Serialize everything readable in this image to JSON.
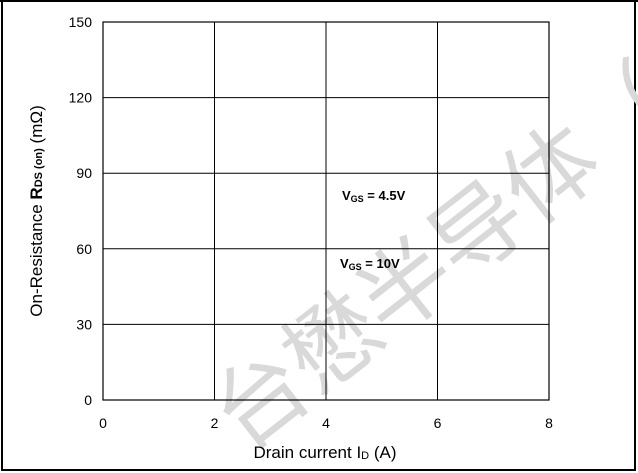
{
  "chart_data": {
    "type": "line",
    "title": "",
    "xlabel": "Drain current I",
    "xlabel_sub": "D",
    "xlabel_unit": " (A)",
    "ylabel_prefix": "On-Resistance ",
    "ylabel_bold": "R",
    "ylabel_sub": "DS (on)",
    "ylabel_unit": " (mΩ)",
    "xlim": [
      0,
      8
    ],
    "ylim": [
      0,
      150
    ],
    "x_ticks": [
      "0",
      "2",
      "4",
      "6",
      "8"
    ],
    "y_ticks": [
      "0",
      "30",
      "60",
      "90",
      "120",
      "150"
    ],
    "grid": true,
    "annotations": [
      {
        "main": "V",
        "sub": "GS",
        "rest": " = 4.5V"
      },
      {
        "main": "V",
        "sub": "GS",
        "rest": " = 10V"
      }
    ],
    "series": []
  },
  "watermark": {
    "text": "台懋半导体（",
    "color": "#d9d9d9"
  }
}
